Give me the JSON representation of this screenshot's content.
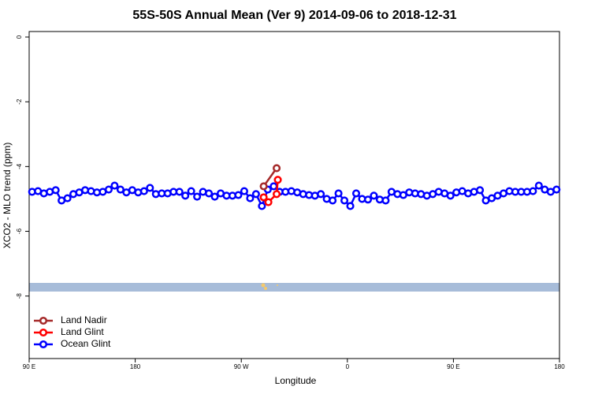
{
  "chart_data": {
    "type": "line",
    "title": "55S-50S Annual Mean (Ver 9)   2014-09-06 to 2018-12-31",
    "x_label": "Longitude",
    "y_label": "XCO2 - MLO trend (ppm)",
    "xlim": [
      90,
      540
    ],
    "xticks": [
      {
        "value": 90,
        "label": "90 E"
      },
      180,
      {
        "value": 270,
        "label": "90 W"
      },
      {
        "value": 360,
        "label": "0"
      },
      {
        "value": 450,
        "label": "90 E"
      },
      {
        "value": 540,
        "label": "180"
      }
    ],
    "ylim": [
      -9.93,
      0.17
    ],
    "yticks": [
      0,
      -2,
      -4,
      -6,
      -8
    ],
    "legend": "bottomleft",
    "series": [
      {
        "name": "Land Nadir",
        "color": "#a52a2a",
        "x": [
          289,
          300
        ],
        "values": [
          -4.61,
          -4.05
        ]
      },
      {
        "name": "Land Glint",
        "color": "#ff0000",
        "x": [
          289,
          293,
          300,
          301
        ],
        "values": [
          -4.95,
          -5.1,
          -4.85,
          -4.41
        ]
      },
      {
        "name": "Ocean Glint",
        "color": "#0000ff",
        "x": [
          92.5,
          97.5,
          102.5,
          107.5,
          112.5,
          117.5,
          122.5,
          127.5,
          132.5,
          137.5,
          142.5,
          147.5,
          152.5,
          157.5,
          162.5,
          167.5,
          172.5,
          177.5,
          182.5,
          187.5,
          192.5,
          197.5,
          202.5,
          207.5,
          212.5,
          217.5,
          222.5,
          227.5,
          232.5,
          237.5,
          242.5,
          247.5,
          252.5,
          257.5,
          262.5,
          267.5,
          272.5,
          277.5,
          282.5,
          287.5,
          292.5,
          297.5,
          302.5,
          307.5,
          312.5,
          317.5,
          322.5,
          327.5,
          332.5,
          337.5,
          342.5,
          347.5,
          352.5,
          357.5,
          362.5,
          367.5,
          372.5,
          377.5,
          382.5,
          387.5,
          392.5,
          397.5,
          402.5,
          407.5,
          412.5,
          417.5,
          422.5,
          427.5,
          432.5,
          437.5,
          442.5,
          447.5,
          452.5,
          457.5,
          462.5,
          467.5,
          472.5,
          477.5,
          482.5,
          487.5,
          492.5,
          497.5,
          502.5,
          507.5,
          512.5,
          517.5,
          522.5,
          527.5,
          532.5,
          537.5
        ],
        "values": [
          -4.78,
          -4.76,
          -4.83,
          -4.78,
          -4.73,
          -5.05,
          -4.98,
          -4.85,
          -4.8,
          -4.73,
          -4.76,
          -4.8,
          -4.78,
          -4.71,
          -4.59,
          -4.71,
          -4.8,
          -4.73,
          -4.8,
          -4.76,
          -4.66,
          -4.85,
          -4.83,
          -4.83,
          -4.78,
          -4.78,
          -4.9,
          -4.76,
          -4.93,
          -4.78,
          -4.83,
          -4.93,
          -4.83,
          -4.9,
          -4.9,
          -4.88,
          -4.76,
          -4.98,
          -4.85,
          -5.22,
          -4.71,
          -4.61,
          -4.78,
          -4.78,
          -4.76,
          -4.8,
          -4.85,
          -4.88,
          -4.9,
          -4.85,
          -5.0,
          -5.05,
          -4.83,
          -5.05,
          -5.22,
          -4.83,
          -5.0,
          -5.02,
          -4.9,
          -5.02,
          -5.05,
          -4.78,
          -4.85,
          -4.88,
          -4.8,
          -4.83,
          -4.85,
          -4.9,
          -4.85,
          -4.78,
          -4.83,
          -4.9,
          -4.8,
          -4.76,
          -4.83,
          -4.78,
          -4.73,
          -5.05,
          -4.98,
          -4.9,
          -4.83,
          -4.76,
          -4.78,
          -4.78,
          -4.78,
          -4.76,
          -4.59,
          -4.71,
          -4.78,
          -4.71
        ]
      }
    ]
  }
}
